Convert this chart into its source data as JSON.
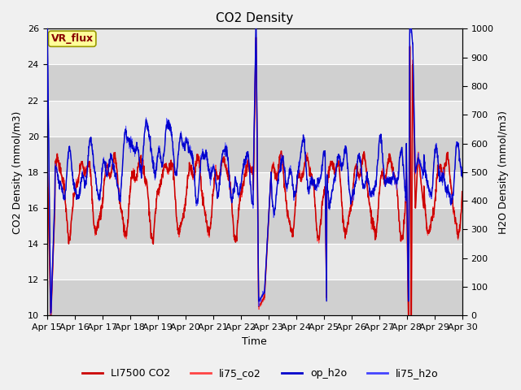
{
  "title": "CO2 Density",
  "xlabel": "Time",
  "ylabel_left": "CO2 Density (mmol/m3)",
  "ylabel_right": "H2O Density (mmol/m3)",
  "ylim_left": [
    10,
    26
  ],
  "ylim_right": [
    0,
    1000
  ],
  "yticks_left": [
    10,
    12,
    14,
    16,
    18,
    20,
    22,
    24,
    26
  ],
  "yticks_right": [
    0,
    100,
    200,
    300,
    400,
    500,
    600,
    700,
    800,
    900,
    1000
  ],
  "xtick_labels": [
    "Apr 15",
    "Apr 16",
    "Apr 17",
    "Apr 18",
    "Apr 19",
    "Apr 20",
    "Apr 21",
    "Apr 22",
    "Apr 23",
    "Apr 24",
    "Apr 25",
    "Apr 26",
    "Apr 27",
    "Apr 28",
    "Apr 29",
    "Apr 30"
  ],
  "vr_flux_label": "VR_flux",
  "legend_entries": [
    "LI7500 CO2",
    "li75_co2",
    "op_h2o",
    "li75_h2o"
  ],
  "colors": {
    "li7500_co2": "#cc0000",
    "li75_co2": "#ff4444",
    "op_h2o": "#0000cc",
    "li75_h2o": "#4444ff"
  },
  "bg_color": "#f0f0f0",
  "plot_bg_light": "#e8e8e8",
  "plot_bg_dark": "#d0d0d0",
  "vr_flux_box_color": "#ffff99",
  "vr_flux_text_color": "#880000",
  "vr_flux_edge_color": "#999900"
}
